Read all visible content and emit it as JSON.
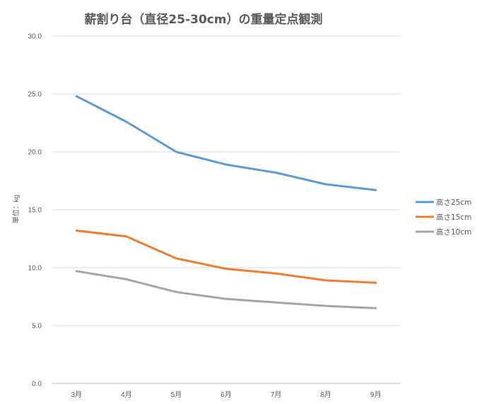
{
  "chart_data": {
    "type": "line",
    "title": "薪割り台（直径25-30cm）の重量定点観測",
    "xlabel": "",
    "ylabel": "単位：kg",
    "categories": [
      "3月",
      "4月",
      "5月",
      "6月",
      "7月",
      "8月",
      "9月"
    ],
    "ylim": [
      0,
      30
    ],
    "yticks": [
      "0.0",
      "5.0",
      "10.0",
      "15.0",
      "20.0",
      "25.0",
      "30.0"
    ],
    "grid": true,
    "legend": "right",
    "series": [
      {
        "name": "高さ25cm",
        "color": "#5B9BD5",
        "values": [
          24.8,
          22.6,
          20.0,
          18.9,
          18.2,
          17.2,
          16.7
        ]
      },
      {
        "name": "高さ15cm",
        "color": "#ED7D31",
        "values": [
          13.2,
          12.7,
          10.8,
          9.9,
          9.5,
          8.9,
          8.7
        ]
      },
      {
        "name": "高さ10cm",
        "color": "#A5A5A5",
        "values": [
          9.7,
          9.0,
          7.9,
          7.3,
          7.0,
          6.7,
          6.5
        ]
      }
    ]
  }
}
